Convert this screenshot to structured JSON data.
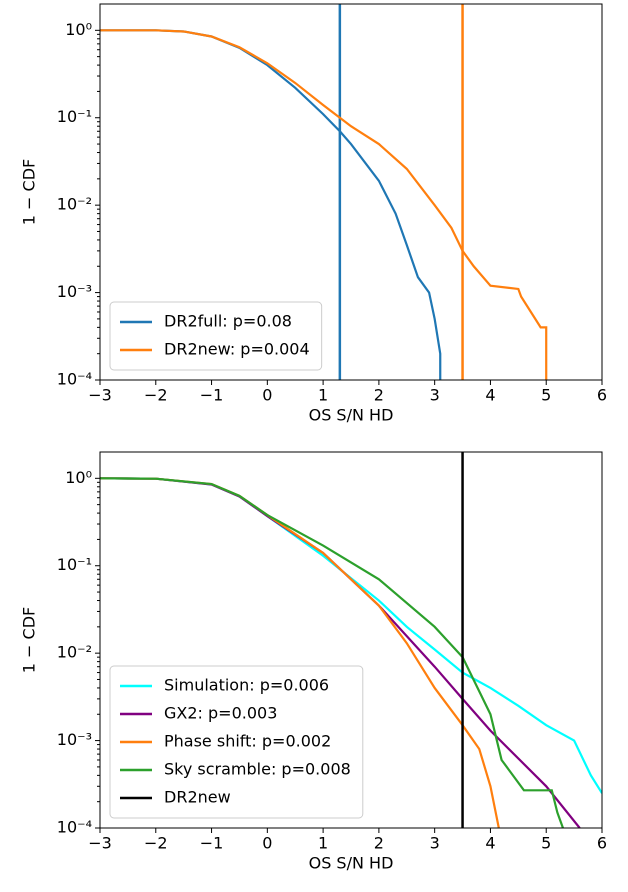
{
  "chart_data": [
    {
      "type": "line",
      "xlabel": "OS S/N HD",
      "ylabel": "1 − CDF",
      "yscale": "log",
      "legend": "lower left",
      "xlim": [
        -3,
        6
      ],
      "ylim": [
        0.0001,
        2
      ],
      "xticks": [
        {
          "value": -3,
          "label": "−3"
        },
        {
          "value": -2,
          "label": "−2"
        },
        {
          "value": -1,
          "label": "−1"
        },
        0,
        1,
        2,
        3,
        4,
        5,
        6
      ],
      "yticks": [
        {
          "value": 1,
          "label": "10⁰"
        },
        {
          "value": 0.1,
          "label": "10⁻¹"
        },
        {
          "value": 0.01,
          "label": "10⁻²"
        },
        {
          "value": 0.001,
          "label": "10⁻³"
        },
        {
          "value": 0.0001,
          "label": "10⁻⁴"
        }
      ],
      "series": [
        {
          "name": "DR2full: p=0.08",
          "color": "#1f77b4",
          "vline": 1.3,
          "x": [
            -3,
            -2,
            -1.5,
            -1,
            -0.5,
            0,
            0.5,
            1,
            1.3,
            1.5,
            2,
            2.3,
            2.5,
            2.7,
            2.9,
            3.0,
            3.1,
            3.1
          ],
          "values": [
            1,
            1,
            0.97,
            0.85,
            0.63,
            0.4,
            0.22,
            0.11,
            0.07,
            0.05,
            0.019,
            0.008,
            0.0035,
            0.0015,
            0.001,
            0.0005,
            0.0002,
            0.0001
          ]
        },
        {
          "name": "DR2new: p=0.004",
          "color": "#ff7f0e",
          "vline": 3.5,
          "x": [
            -3,
            -2,
            -1.5,
            -1,
            -0.5,
            0,
            0.5,
            1,
            1.5,
            2,
            2.5,
            3,
            3.3,
            3.5,
            3.7,
            4,
            4.5,
            4.55,
            4.9,
            5,
            5
          ],
          "values": [
            1,
            1,
            0.97,
            0.85,
            0.64,
            0.42,
            0.25,
            0.14,
            0.08,
            0.05,
            0.026,
            0.01,
            0.0055,
            0.003,
            0.002,
            0.0012,
            0.0011,
            0.0009,
            0.0004,
            0.0004,
            0.0001
          ]
        }
      ]
    },
    {
      "type": "line",
      "xlabel": "OS S/N HD",
      "ylabel": "1 − CDF",
      "yscale": "log",
      "legend": "lower left",
      "xlim": [
        -3,
        6
      ],
      "ylim": [
        0.0001,
        2
      ],
      "xticks": [
        {
          "value": -3,
          "label": "−3"
        },
        {
          "value": -2,
          "label": "−2"
        },
        {
          "value": -1,
          "label": "−1"
        },
        0,
        1,
        2,
        3,
        4,
        5,
        6
      ],
      "yticks": [
        {
          "value": 1,
          "label": "10⁰"
        },
        {
          "value": 0.1,
          "label": "10⁻¹"
        },
        {
          "value": 0.01,
          "label": "10⁻²"
        },
        {
          "value": 0.001,
          "label": "10⁻³"
        },
        {
          "value": 0.0001,
          "label": "10⁻⁴"
        }
      ],
      "series": [
        {
          "name": "Simulation: p=0.006",
          "color": "#00ffff",
          "x": [
            -3,
            -2,
            -1,
            -0.5,
            0,
            1,
            2,
            2.5,
            3,
            3.5,
            4,
            4.5,
            5,
            5.5,
            5.8,
            6
          ],
          "values": [
            1,
            0.99,
            0.85,
            0.62,
            0.37,
            0.13,
            0.04,
            0.02,
            0.011,
            0.006,
            0.004,
            0.0025,
            0.0015,
            0.001,
            0.0004,
            0.00025
          ]
        },
        {
          "name": "GX2: p=0.003",
          "color": "#800080",
          "x": [
            -3,
            -2,
            -1,
            -0.5,
            0,
            1,
            2,
            3,
            3.5,
            4,
            5,
            5.6
          ],
          "values": [
            1,
            0.99,
            0.85,
            0.62,
            0.37,
            0.14,
            0.035,
            0.007,
            0.003,
            0.0013,
            0.0003,
            0.0001
          ]
        },
        {
          "name": "Phase shift: p=0.002",
          "color": "#ff7f0e",
          "x": [
            -3,
            -2,
            -1,
            -0.5,
            0,
            1,
            2,
            2.5,
            3,
            3.5,
            3.8,
            4,
            4.15
          ],
          "values": [
            1,
            0.99,
            0.86,
            0.63,
            0.38,
            0.14,
            0.035,
            0.013,
            0.004,
            0.0015,
            0.0008,
            0.0003,
            0.0001
          ]
        },
        {
          "name": "Sky scramble: p=0.008",
          "color": "#2ca02c",
          "x": [
            -3,
            -2,
            -1,
            -0.5,
            0,
            1,
            2,
            3,
            3.5,
            4,
            4.2,
            4.6,
            5.1,
            5.2,
            5.3
          ],
          "values": [
            1,
            0.99,
            0.86,
            0.63,
            0.38,
            0.17,
            0.07,
            0.02,
            0.009,
            0.002,
            0.0006,
            0.00027,
            0.00027,
            0.00015,
            0.0001
          ]
        },
        {
          "name": "DR2new",
          "color": "#000000",
          "vline": 3.5
        }
      ]
    }
  ]
}
